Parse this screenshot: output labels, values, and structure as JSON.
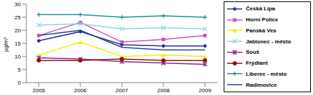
{
  "chart_data": {
    "type": "line",
    "y_label": "µg/m³",
    "categories": [
      "2005",
      "2006",
      "2007",
      "2008",
      "2009"
    ],
    "ylim": [
      0,
      30
    ],
    "yticks": [
      0,
      5,
      10,
      15,
      20,
      25,
      30
    ],
    "grid": false,
    "legend": "right",
    "series": [
      {
        "name": "Česká Lípa",
        "color": "#1f2f8f",
        "marker": "diamond",
        "values": [
          16,
          19.5,
          14.5,
          14,
          14
        ]
      },
      {
        "name": "Horní Police",
        "color": "#cc4fbf",
        "marker": "square",
        "values": [
          18,
          23,
          15.5,
          16.5,
          18
        ]
      },
      {
        "name": "Panská Ves",
        "color": "#f0f000",
        "marker": "triangle",
        "values": [
          10.5,
          15.5,
          10,
          10.5,
          10
        ]
      },
      {
        "name": "Jablonec - město",
        "color": "#8fd6e6",
        "marker": "x",
        "values": [
          22,
          22.5,
          20.5,
          21,
          20.5
        ]
      },
      {
        "name": "Souš",
        "color": "#8f1f8f",
        "marker": "star",
        "values": [
          9.5,
          9,
          8,
          7.5,
          7
        ]
      },
      {
        "name": "Frýdlant",
        "color": "#8f1010",
        "marker": "circle",
        "values": [
          8.5,
          8.5,
          9,
          8.5,
          8.5
        ]
      },
      {
        "name": "Liberec - město",
        "color": "#1f8f8f",
        "marker": "plus",
        "values": [
          26,
          26,
          25,
          25.5,
          25
        ]
      },
      {
        "name": "Radimovice",
        "color": "#1f3f9f",
        "marker": "none",
        "values": [
          18,
          20,
          13.5,
          12.5,
          12.5
        ]
      }
    ]
  }
}
